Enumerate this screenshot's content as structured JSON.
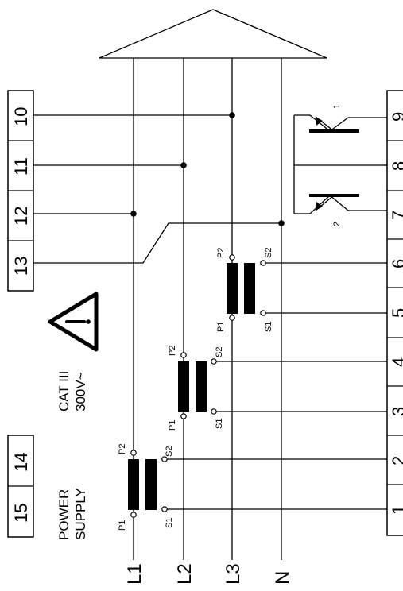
{
  "diagram": {
    "phases": [
      "L1",
      "L2",
      "L3",
      "N"
    ],
    "left_terminals": [
      "10",
      "11",
      "12",
      "13"
    ],
    "power_terminals": [
      "14",
      "15"
    ],
    "right_terminals": [
      "9",
      "8",
      "7",
      "6",
      "5",
      "4",
      "3",
      "2",
      "1"
    ],
    "power_supply": [
      "POWER",
      "SUPPLY"
    ],
    "cat_rating": [
      "CAT III",
      "300V~"
    ],
    "ct_terminals": {
      "p1": "P1",
      "p2": "P2",
      "s1": "S1",
      "s2": "S2"
    },
    "relay_labels": [
      "1",
      "2"
    ]
  }
}
